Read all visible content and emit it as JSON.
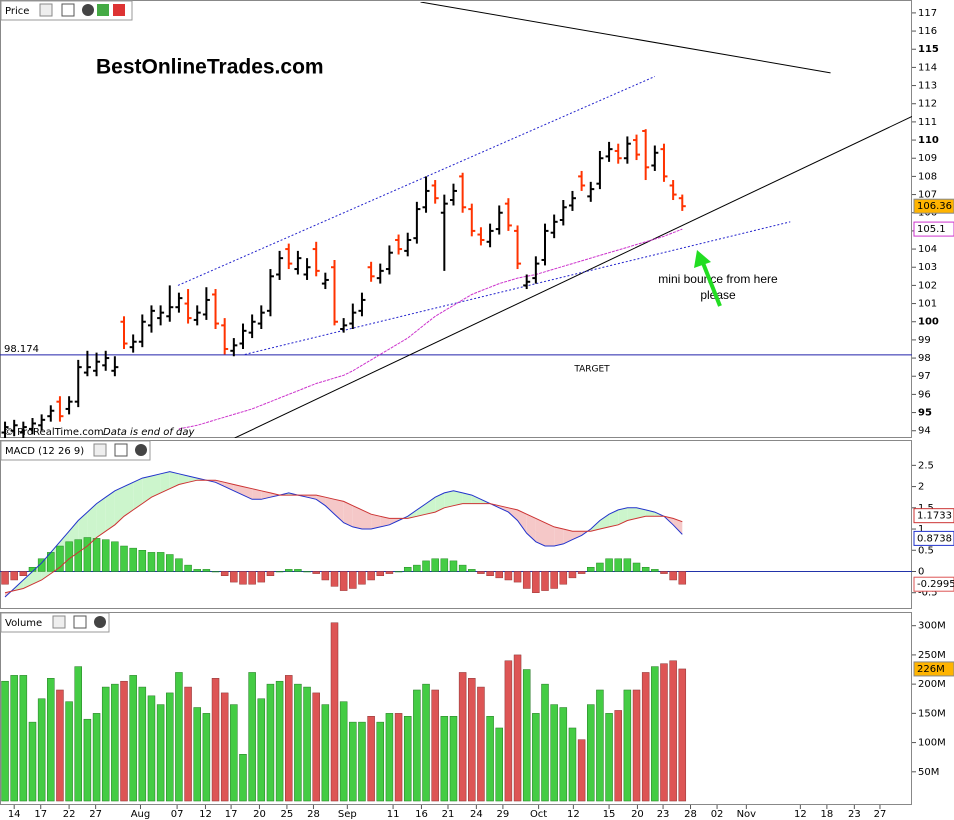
{
  "chart_data": [
    {
      "type": "ohlc",
      "title": "Price",
      "watermark": "BestOnlineTrades.com",
      "credit": "© ProRealTime.com",
      "credit_note": "Data is end of day",
      "ylim": [
        93.6,
        117.6
      ],
      "yticks": [
        94,
        95,
        96,
        97,
        98,
        99,
        100,
        101,
        102,
        103,
        104,
        105,
        106,
        107,
        108,
        109,
        110,
        111,
        112,
        113,
        114,
        115,
        116,
        117
      ],
      "up_color": "#000000",
      "down_color": "#ff3300",
      "open": [
        93.9,
        94.0,
        93.9,
        94.1,
        94.3,
        94.8,
        95.6,
        95.2,
        95.6,
        97.2,
        97.3,
        97.6,
        97.3,
        100.0,
        98.6,
        98.9,
        99.8,
        100.2,
        100.3,
        100.8,
        101.0,
        100.1,
        100.4,
        101.5,
        99.8,
        98.4,
        98.8,
        99.4,
        99.9,
        100.6,
        102.6,
        104.0,
        102.9,
        102.6,
        104.0,
        102.1,
        103.0,
        99.6,
        99.9,
        100.6,
        103.0,
        102.4,
        102.9,
        104.5,
        103.9,
        104.6,
        106.3,
        107.5,
        106.0,
        106.7,
        108.0,
        106.2,
        104.8,
        104.4,
        105.1,
        106.5,
        105.0,
        102.0,
        102.4,
        103.4,
        104.9,
        105.6,
        106.4,
        108.0,
        106.9,
        107.6,
        109.1,
        109.4,
        109.0,
        110.0,
        110.5,
        108.6,
        109.5,
        107.5,
        106.8
      ],
      "high": [
        94.5,
        94.6,
        94.5,
        94.7,
        94.9,
        95.4,
        95.9,
        95.9,
        97.9,
        98.4,
        98.3,
        98.4,
        98.1,
        100.3,
        99.3,
        100.4,
        100.9,
        100.9,
        102.0,
        101.6,
        101.8,
        100.9,
        101.9,
        101.8,
        100.2,
        99.1,
        99.9,
        100.4,
        100.9,
        102.9,
        103.9,
        104.3,
        103.9,
        103.5,
        104.4,
        102.7,
        103.4,
        100.2,
        101.0,
        101.6,
        103.3,
        103.2,
        104.2,
        104.8,
        104.9,
        106.6,
        108.0,
        107.8,
        107.0,
        107.6,
        108.2,
        106.5,
        105.2,
        105.4,
        106.4,
        106.8,
        105.3,
        102.6,
        103.6,
        105.4,
        105.9,
        106.7,
        107.2,
        108.3,
        107.7,
        109.4,
        109.9,
        109.8,
        110.2,
        110.3,
        110.6,
        109.7,
        109.8,
        107.8,
        107.0
      ],
      "low": [
        93.6,
        93.7,
        93.6,
        93.8,
        94.0,
        94.5,
        94.5,
        94.9,
        95.3,
        97.0,
        97.0,
        97.3,
        97.0,
        98.5,
        98.3,
        98.6,
        99.4,
        99.8,
        100.0,
        100.5,
        99.9,
        99.8,
        100.1,
        99.6,
        98.2,
        98.1,
        98.5,
        99.1,
        99.6,
        100.3,
        102.3,
        102.9,
        102.6,
        102.3,
        102.5,
        101.8,
        99.8,
        99.4,
        99.6,
        100.3,
        102.2,
        102.1,
        102.6,
        103.7,
        103.6,
        104.3,
        106.0,
        106.5,
        102.8,
        106.4,
        106.0,
        104.7,
        104.2,
        104.1,
        104.8,
        105.0,
        102.9,
        101.8,
        102.1,
        103.1,
        104.6,
        105.3,
        106.1,
        107.2,
        106.6,
        107.3,
        108.8,
        108.7,
        108.7,
        108.9,
        107.8,
        108.3,
        107.7,
        106.7,
        106.1
      ],
      "close": [
        94.2,
        94.3,
        94.2,
        94.4,
        94.6,
        95.1,
        94.8,
        95.6,
        97.5,
        97.5,
        97.8,
        98.0,
        97.5,
        98.8,
        98.9,
        100.0,
        100.6,
        100.5,
        100.8,
        101.3,
        100.2,
        100.5,
        101.2,
        99.9,
        98.5,
        98.7,
        99.5,
        100.0,
        100.5,
        102.5,
        103.5,
        103.2,
        103.5,
        103.0,
        102.8,
        102.3,
        100.0,
        99.8,
        100.5,
        101.2,
        102.5,
        102.8,
        103.8,
        104.0,
        104.5,
        106.2,
        107.2,
        106.8,
        106.5,
        107.2,
        106.3,
        105.0,
        104.5,
        105.0,
        106.0,
        105.3,
        103.2,
        102.2,
        103.2,
        105.0,
        105.5,
        106.3,
        106.8,
        107.5,
        107.3,
        109.0,
        109.5,
        109.0,
        109.8,
        109.2,
        108.5,
        109.3,
        108.0,
        107.0,
        106.36
      ],
      "last_box_color": "#ffb400",
      "moving_average": {
        "color": "#cc33cc",
        "values": [
          null,
          null,
          null,
          null,
          null,
          null,
          null,
          null,
          null,
          null,
          null,
          null,
          null,
          null,
          null,
          null,
          null,
          null,
          null,
          94.1,
          94.2,
          94.3,
          94.45,
          94.6,
          94.75,
          94.9,
          95.05,
          95.2,
          95.4,
          95.6,
          95.8,
          96.0,
          96.2,
          96.4,
          96.6,
          96.75,
          96.9,
          97.05,
          97.3,
          97.6,
          97.9,
          98.2,
          98.5,
          98.8,
          99.1,
          99.5,
          99.9,
          100.3,
          100.6,
          100.9,
          101.2,
          101.5,
          101.7,
          101.9,
          102.1,
          102.25,
          102.4,
          102.5,
          102.6,
          102.75,
          102.9,
          103.05,
          103.2,
          103.35,
          103.5,
          103.65,
          103.8,
          103.95,
          104.1,
          104.25,
          104.4,
          104.55,
          104.7,
          104.9,
          105.1
        ]
      },
      "trendlines": [
        {
          "color": "#000000",
          "dashed": false,
          "x": [
            45.4,
            90.2
          ],
          "y": [
            117.6,
            113.7
          ]
        },
        {
          "color": "#000000",
          "dashed": false,
          "x": [
            25.1,
            99.1
          ],
          "y": [
            93.6,
            111.3
          ]
        },
        {
          "color": "#2222cc",
          "dashed": true,
          "x": [
            18.9,
            71.0
          ],
          "y": [
            102.0,
            113.5
          ]
        },
        {
          "color": "#2222cc",
          "dashed": true,
          "x": [
            26.2,
            85.8
          ],
          "y": [
            98.2,
            105.5
          ]
        }
      ],
      "target": {
        "value": 98.174,
        "label": "TARGET",
        "color": "#2222aa"
      },
      "annotation": [
        "mini bounce from here",
        "please"
      ]
    },
    {
      "type": "macd",
      "title": "MACD (12 26 9)",
      "ylim": [
        -0.86,
        3.05
      ],
      "yticks": [
        -0.5,
        0,
        0.5,
        1,
        1.5,
        2,
        2.5
      ],
      "series": [
        {
          "name": "MACD",
          "color": "#2233cc",
          "values": [
            -0.6,
            -0.4,
            -0.2,
            0.0,
            0.2,
            0.45,
            0.7,
            0.95,
            1.2,
            1.4,
            1.6,
            1.75,
            1.9,
            2.0,
            2.1,
            2.2,
            2.25,
            2.3,
            2.35,
            2.3,
            2.25,
            2.2,
            2.15,
            2.1,
            2.0,
            1.9,
            1.8,
            1.7,
            1.7,
            1.75,
            1.8,
            1.85,
            1.8,
            1.75,
            1.7,
            1.55,
            1.35,
            1.15,
            1.05,
            1.0,
            1.0,
            1.05,
            1.1,
            1.2,
            1.3,
            1.45,
            1.6,
            1.75,
            1.85,
            1.9,
            1.85,
            1.8,
            1.7,
            1.6,
            1.5,
            1.4,
            1.2,
            0.9,
            0.7,
            0.6,
            0.6,
            0.65,
            0.75,
            0.85,
            1.0,
            1.2,
            1.35,
            1.45,
            1.5,
            1.5,
            1.45,
            1.4,
            1.3,
            1.1,
            0.8738
          ]
        },
        {
          "name": "Signal",
          "color": "#cc3333",
          "values": [
            -0.5,
            -0.45,
            -0.4,
            -0.3,
            -0.2,
            -0.05,
            0.1,
            0.3,
            0.45,
            0.6,
            0.8,
            0.95,
            1.1,
            1.3,
            1.45,
            1.6,
            1.75,
            1.85,
            1.95,
            2.05,
            2.1,
            2.15,
            2.15,
            2.15,
            2.1,
            2.05,
            2.0,
            1.95,
            1.9,
            1.85,
            1.8,
            1.8,
            1.8,
            1.8,
            1.8,
            1.75,
            1.7,
            1.65,
            1.55,
            1.45,
            1.35,
            1.3,
            1.25,
            1.25,
            1.25,
            1.3,
            1.35,
            1.4,
            1.5,
            1.55,
            1.6,
            1.6,
            1.6,
            1.6,
            1.55,
            1.5,
            1.45,
            1.35,
            1.25,
            1.15,
            1.05,
            1.0,
            0.95,
            0.95,
            0.95,
            1.0,
            1.05,
            1.1,
            1.2,
            1.25,
            1.3,
            1.3,
            1.3,
            1.25,
            1.1733
          ]
        },
        {
          "name": "Histogram",
          "color": "#44cc44",
          "negative_color": "#dd5555",
          "values": [
            -0.3,
            -0.2,
            -0.1,
            0.1,
            0.3,
            0.45,
            0.6,
            0.7,
            0.75,
            0.8,
            0.78,
            0.75,
            0.7,
            0.6,
            0.55,
            0.5,
            0.45,
            0.45,
            0.4,
            0.3,
            0.15,
            0.05,
            0.05,
            0.0,
            -0.1,
            -0.25,
            -0.3,
            -0.3,
            -0.25,
            -0.1,
            0.0,
            0.05,
            0.05,
            0.0,
            -0.05,
            -0.2,
            -0.35,
            -0.45,
            -0.4,
            -0.3,
            -0.2,
            -0.1,
            -0.05,
            0.0,
            0.1,
            0.15,
            0.25,
            0.3,
            0.3,
            0.25,
            0.15,
            0.05,
            -0.05,
            -0.1,
            -0.15,
            -0.2,
            -0.25,
            -0.4,
            -0.5,
            -0.45,
            -0.4,
            -0.3,
            -0.15,
            -0.05,
            0.1,
            0.2,
            0.3,
            0.3,
            0.3,
            0.2,
            0.1,
            0.05,
            -0.05,
            -0.2,
            -0.2995
          ]
        }
      ],
      "above_fill": "#ccf5cc",
      "below_fill": "#f5c8c8"
    },
    {
      "type": "bar",
      "title": "Volume",
      "ylim": [
        -6.8,
        320
      ],
      "yticks": [
        {
          "value": 50,
          "label": "50M"
        },
        {
          "value": 100,
          "label": "100M"
        },
        {
          "value": 150,
          "label": "150M"
        },
        {
          "value": 200,
          "label": "200M"
        },
        {
          "value": 250,
          "label": "250M"
        },
        {
          "value": 300,
          "label": "300M"
        }
      ],
      "values": [
        205,
        215,
        215,
        135,
        175,
        210,
        190,
        170,
        230,
        140,
        150,
        195,
        200,
        205,
        215,
        195,
        180,
        165,
        185,
        220,
        195,
        160,
        150,
        210,
        185,
        165,
        80,
        220,
        175,
        200,
        205,
        215,
        200,
        195,
        185,
        165,
        305,
        170,
        135,
        135,
        145,
        135,
        150,
        150,
        145,
        190,
        200,
        190,
        145,
        145,
        220,
        210,
        195,
        145,
        125,
        240,
        250,
        225,
        150,
        200,
        165,
        160,
        125,
        105,
        165,
        190,
        150,
        155,
        190,
        190,
        220,
        230,
        235,
        240,
        226
      ],
      "last_value_label": "226M",
      "last_box_color": "#ffb400",
      "up_color": "#44cc44",
      "down_color": "#dd5555",
      "xlim": [
        -0.55,
        99.1
      ],
      "xticks": [
        {
          "value": 1.0,
          "label": "14"
        },
        {
          "value": 3.9,
          "label": "17"
        },
        {
          "value": 7.0,
          "label": "22"
        },
        {
          "value": 9.9,
          "label": "27"
        },
        {
          "value": 14.8,
          "label": "Aug"
        },
        {
          "value": 18.8,
          "label": "07"
        },
        {
          "value": 21.9,
          "label": "12"
        },
        {
          "value": 24.7,
          "label": "17"
        },
        {
          "value": 27.8,
          "label": "20"
        },
        {
          "value": 30.8,
          "label": "25"
        },
        {
          "value": 33.7,
          "label": "28"
        },
        {
          "value": 37.4,
          "label": "Sep"
        },
        {
          "value": 42.4,
          "label": "11"
        },
        {
          "value": 45.5,
          "label": "16"
        },
        {
          "value": 48.4,
          "label": "21"
        },
        {
          "value": 51.5,
          "label": "24"
        },
        {
          "value": 54.4,
          "label": "29"
        },
        {
          "value": 58.3,
          "label": "Oct"
        },
        {
          "value": 62.1,
          "label": "12"
        },
        {
          "value": 66.0,
          "label": "15"
        },
        {
          "value": 69.1,
          "label": "20"
        },
        {
          "value": 71.9,
          "label": "23"
        },
        {
          "value": 74.9,
          "label": "28"
        },
        {
          "value": 77.8,
          "label": "02"
        },
        {
          "value": 81.0,
          "label": "Nov"
        },
        {
          "value": 86.9,
          "label": "12"
        },
        {
          "value": 89.8,
          "label": "18"
        },
        {
          "value": 92.8,
          "label": "23"
        },
        {
          "value": 95.6,
          "label": "27"
        }
      ]
    }
  ]
}
